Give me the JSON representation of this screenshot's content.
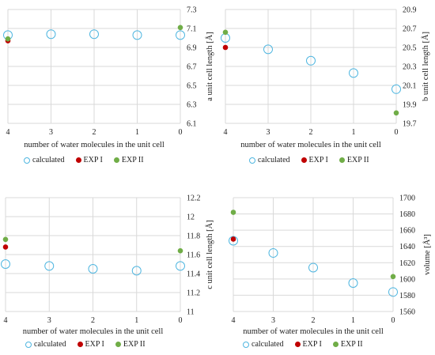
{
  "styles": {
    "calculated_color": "#4fb6e0",
    "exp1_color": "#c00000",
    "exp2_color": "#70ad47",
    "grid_color": "#d9d9d9"
  },
  "chart_data": [
    {
      "type": "scatter",
      "xlabel": "number of water molecules in the unit cell",
      "ylabel": "a unit cell length [Å]",
      "x_ticks": [
        4,
        3,
        2,
        1,
        0
      ],
      "x_reversed": true,
      "xlim": [
        0,
        4
      ],
      "ylim": [
        6.1,
        7.3
      ],
      "y_ticks": [
        6.1,
        6.3,
        6.5,
        6.7,
        6.9,
        7.1,
        7.3
      ],
      "y_decimals": 1,
      "grid": true,
      "legend_position": "bottom",
      "series": [
        {
          "name": "calculated",
          "marker": "open",
          "x": [
            4,
            3,
            2,
            1,
            0
          ],
          "y": [
            7.03,
            7.04,
            7.04,
            7.03,
            7.03
          ]
        },
        {
          "name": "EXP I",
          "marker": "filled",
          "x": [
            4
          ],
          "y": [
            6.97
          ]
        },
        {
          "name": "EXP II",
          "marker": "filled",
          "x": [
            4,
            0
          ],
          "y": [
            6.99,
            7.11
          ]
        }
      ]
    },
    {
      "type": "scatter",
      "xlabel": "number of water molecules in the unit cell",
      "ylabel": "b unit cell length [Å]",
      "x_ticks": [
        4,
        3,
        2,
        1,
        0
      ],
      "x_reversed": true,
      "xlim": [
        0,
        4
      ],
      "ylim": [
        19.7,
        20.9
      ],
      "y_ticks": [
        19.7,
        19.9,
        20.1,
        20.3,
        20.5,
        20.7,
        20.9
      ],
      "y_decimals": 1,
      "grid": true,
      "legend_position": "bottom",
      "series": [
        {
          "name": "calculated",
          "marker": "open",
          "x": [
            4,
            3,
            2,
            1,
            0
          ],
          "y": [
            20.6,
            20.48,
            20.36,
            20.23,
            20.06
          ]
        },
        {
          "name": "EXP I",
          "marker": "filled",
          "x": [
            4
          ],
          "y": [
            20.5
          ]
        },
        {
          "name": "EXP II",
          "marker": "filled",
          "x": [
            4,
            0
          ],
          "y": [
            20.66,
            19.81
          ]
        }
      ]
    },
    {
      "type": "scatter",
      "xlabel": "number of water molecules in the unit cell",
      "ylabel": "c unit cell length [Å]",
      "x_ticks": [
        4,
        3,
        2,
        1,
        0
      ],
      "x_reversed": true,
      "xlim": [
        0,
        4
      ],
      "ylim": [
        11,
        12.2
      ],
      "y_ticks": [
        11,
        11.2,
        11.4,
        11.6,
        11.8,
        12,
        12.2
      ],
      "y_decimals": null,
      "grid": true,
      "legend_position": "bottom",
      "series": [
        {
          "name": "calculated",
          "marker": "open",
          "x": [
            4,
            3,
            2,
            1,
            0
          ],
          "y": [
            11.5,
            11.48,
            11.45,
            11.43,
            11.48
          ]
        },
        {
          "name": "EXP I",
          "marker": "filled",
          "x": [
            4
          ],
          "y": [
            11.68
          ]
        },
        {
          "name": "EXP II",
          "marker": "filled",
          "x": [
            4,
            0
          ],
          "y": [
            11.76,
            11.64
          ]
        }
      ]
    },
    {
      "type": "scatter",
      "xlabel": "number of water molecules in the unit cell",
      "ylabel": "volume [Å³]",
      "x_ticks": [
        4,
        3,
        2,
        1,
        0
      ],
      "x_reversed": true,
      "xlim": [
        0,
        4
      ],
      "ylim": [
        1560,
        1700
      ],
      "y_ticks": [
        1560,
        1580,
        1600,
        1620,
        1640,
        1660,
        1680,
        1700
      ],
      "y_decimals": 0,
      "grid": true,
      "legend_position": "bottom",
      "series": [
        {
          "name": "calculated",
          "marker": "open",
          "x": [
            4,
            3,
            2,
            1,
            0
          ],
          "y": [
            1647,
            1632,
            1614,
            1595,
            1584
          ]
        },
        {
          "name": "EXP I",
          "marker": "filled",
          "x": [
            4
          ],
          "y": [
            1649
          ]
        },
        {
          "name": "EXP II",
          "marker": "filled",
          "x": [
            4,
            0
          ],
          "y": [
            1682,
            1603
          ]
        }
      ]
    }
  ]
}
